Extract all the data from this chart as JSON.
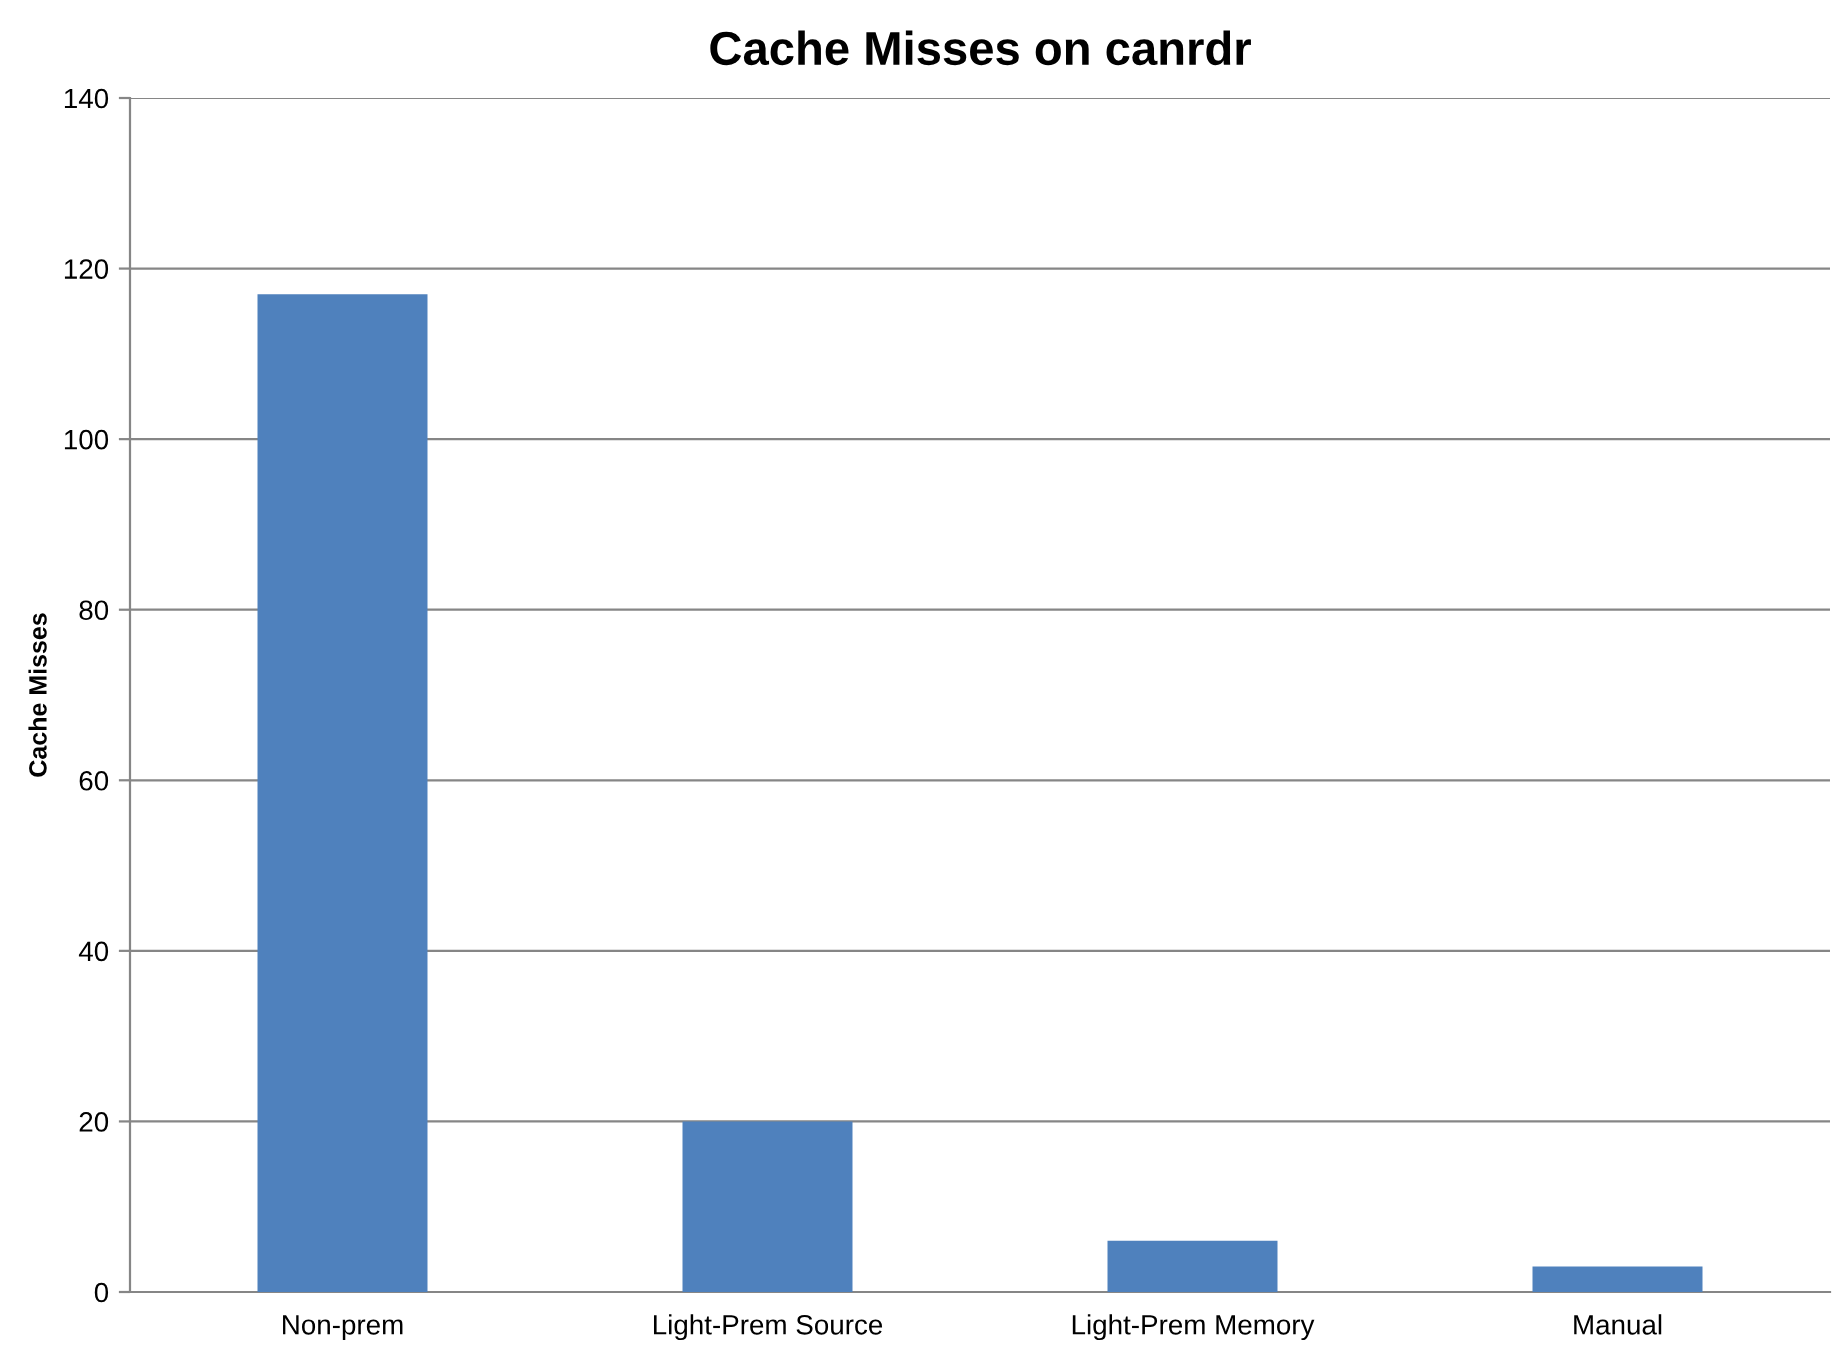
{
  "chart_data": {
    "type": "bar",
    "title": "Cache Misses on canrdr",
    "ylabel": "Cache Misses",
    "categories": [
      "Non-prem",
      "Light-Prem Source",
      "Light-Prem Memory",
      "Manual"
    ],
    "values": [
      117,
      20,
      6,
      3
    ],
    "color": "#4f81bd",
    "ylim": [
      0,
      140
    ],
    "yticks": [
      0,
      20,
      40,
      60,
      80,
      100,
      120,
      140
    ],
    "grid": "y"
  }
}
